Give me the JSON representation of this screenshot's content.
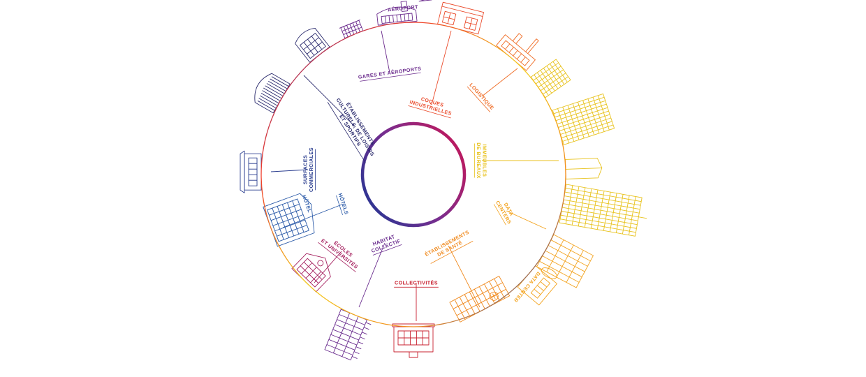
{
  "colors": {
    "ring_outer_gradient": [
      "#f4cf1e",
      "#f28a1c",
      "#ef3b2a",
      "#b11c5e",
      "#5b2d91",
      "#2b4aa2"
    ],
    "inner_ring_gradient": [
      "#c2185b",
      "#7b2d8e",
      "#283593"
    ]
  },
  "sectors": [
    {
      "id": "gares",
      "lines": [
        "GARES ET AÉROPORTS"
      ],
      "color": "#6a2a8c",
      "icon": "airport-building-icon"
    },
    {
      "id": "coques",
      "lines": [
        "COQUES",
        "INDUSTRIELLES"
      ],
      "color": "#ea4a2a",
      "icon": "industrial-building-icon"
    },
    {
      "id": "logistique",
      "lines": [
        "LOGISTIQUE"
      ],
      "color": "#ef6a22",
      "icon": "warehouse-icon"
    },
    {
      "id": "bureaux",
      "lines": [
        "IMMEUBLES",
        "DE BUREAUX"
      ],
      "color": "#e8c21c",
      "icon": "office-tower-icon"
    },
    {
      "id": "datacenters",
      "lines": [
        "DATA",
        "CENTERS"
      ],
      "color": "#f3a420",
      "icon": "data-center-icon"
    },
    {
      "id": "sante",
      "lines": [
        "ÉTABLISSEMENTS",
        "DE SANTÉ"
      ],
      "color": "#f08a1e",
      "icon": "hospital-icon"
    },
    {
      "id": "collectivites",
      "lines": [
        "COLLECTIVITÉS"
      ],
      "color": "#c8202f",
      "icon": "town-hall-icon"
    },
    {
      "id": "habitat",
      "lines": [
        "HABITAT",
        "COLLECTIF"
      ],
      "color": "#6b2e8f",
      "icon": "apartment-building-icon"
    },
    {
      "id": "ecoles",
      "lines": [
        "ÉCOLES",
        "ET UNIVERSITÉS"
      ],
      "color": "#a5215f",
      "icon": "school-icon"
    },
    {
      "id": "hotels",
      "lines": [
        "HÔTELS"
      ],
      "color": "#2b5aa8",
      "icon": "hotel-icon"
    },
    {
      "id": "commerces",
      "lines": [
        "SURFACES",
        "COMMERCIALES"
      ],
      "color": "#2a3d8f",
      "icon": "shop-icon"
    },
    {
      "id": "loisirs",
      "lines": [
        "ÉTABLISSEMENTS",
        "CULTURELS, DE LOISIRS",
        "ET SPORTIFS"
      ],
      "color": "#2c2c6e",
      "icon": "stadium-icon"
    }
  ],
  "building_signs": {
    "airport": "AÉROPORT",
    "hotel": "HÔTEL",
    "datacenter": "DATA CENTER"
  }
}
